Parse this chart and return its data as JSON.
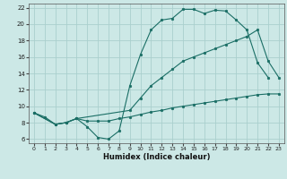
{
  "xlabel": "Humidex (Indice chaleur)",
  "background_color": "#cce8e6",
  "grid_color": "#aacfcd",
  "line_color": "#1a6e65",
  "xlim": [
    -0.5,
    23.5
  ],
  "ylim": [
    5.5,
    22.5
  ],
  "xticks": [
    0,
    1,
    2,
    3,
    4,
    5,
    6,
    7,
    8,
    9,
    10,
    11,
    12,
    13,
    14,
    15,
    16,
    17,
    18,
    19,
    20,
    21,
    22,
    23
  ],
  "yticks": [
    6,
    8,
    10,
    12,
    14,
    16,
    18,
    20,
    22
  ],
  "curve1_x": [
    0,
    1,
    2,
    3,
    4,
    5,
    6,
    7,
    8,
    9,
    10,
    11,
    12,
    13,
    14,
    15,
    16,
    17,
    18,
    19,
    20,
    21,
    22
  ],
  "curve1_y": [
    9.2,
    8.7,
    7.8,
    8.0,
    8.5,
    7.5,
    6.2,
    6.0,
    7.0,
    12.5,
    16.3,
    19.3,
    20.5,
    20.7,
    21.8,
    21.8,
    21.3,
    21.7,
    21.6,
    20.5,
    19.3,
    15.3,
    13.5
  ],
  "curve2_x": [
    0,
    2,
    3,
    4,
    9,
    10,
    11,
    12,
    13,
    14,
    15,
    16,
    17,
    18,
    19,
    20,
    21,
    22,
    23
  ],
  "curve2_y": [
    9.2,
    7.8,
    8.0,
    8.5,
    9.5,
    11.0,
    12.5,
    13.5,
    14.5,
    15.5,
    16.0,
    16.5,
    17.0,
    17.5,
    18.0,
    18.5,
    19.3,
    15.5,
    13.5
  ],
  "curve3_x": [
    0,
    2,
    3,
    4,
    5,
    6,
    7,
    8,
    9,
    10,
    11,
    12,
    13,
    14,
    15,
    16,
    17,
    18,
    19,
    20,
    21,
    22,
    23
  ],
  "curve3_y": [
    9.2,
    7.8,
    8.0,
    8.5,
    8.2,
    8.2,
    8.2,
    8.5,
    8.7,
    9.0,
    9.3,
    9.5,
    9.8,
    10.0,
    10.2,
    10.4,
    10.6,
    10.8,
    11.0,
    11.2,
    11.4,
    11.5,
    11.5
  ]
}
